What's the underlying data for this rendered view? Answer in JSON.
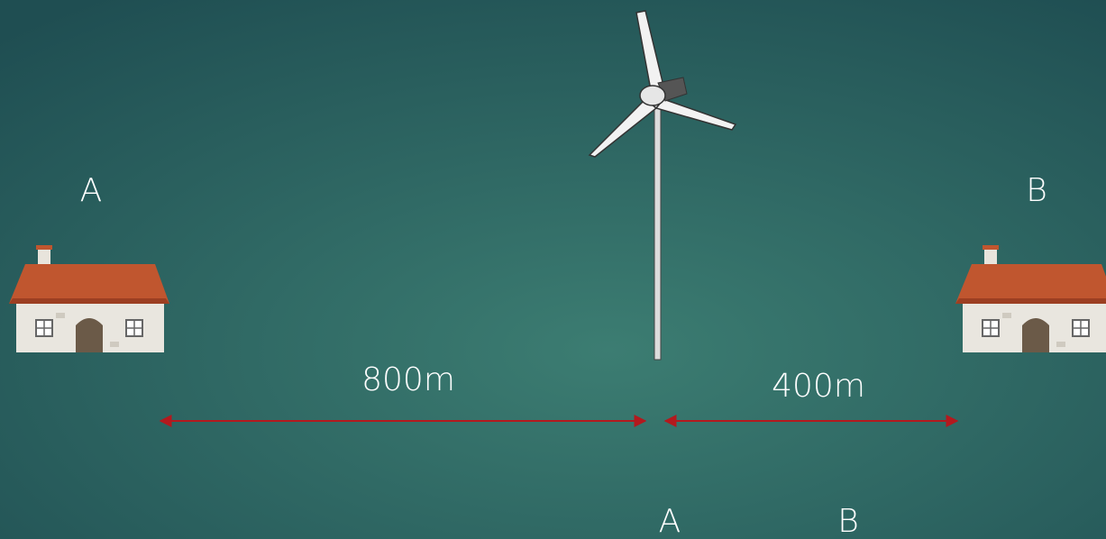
{
  "houses": [
    {
      "label": "A"
    },
    {
      "label": "B"
    }
  ],
  "distances": [
    {
      "label": "800m"
    },
    {
      "label": "400m"
    }
  ],
  "footer_labels": [
    "A",
    "B"
  ]
}
